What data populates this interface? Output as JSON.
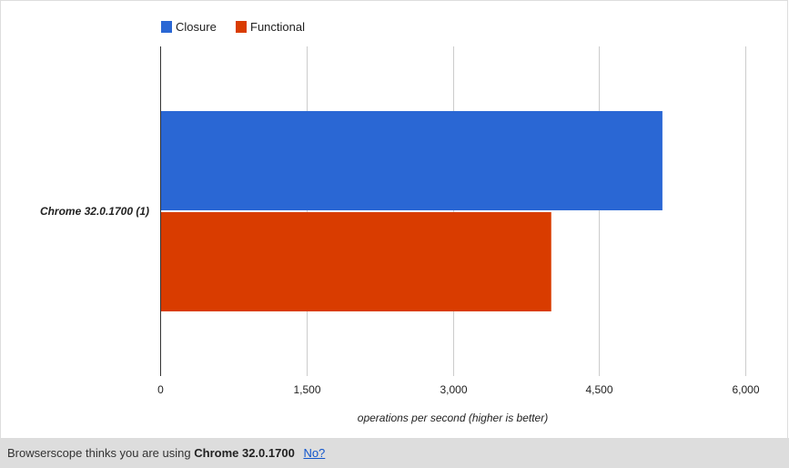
{
  "chart_data": {
    "type": "bar",
    "orientation": "horizontal",
    "categories": [
      "Chrome 32.0.1700 (1)"
    ],
    "series": [
      {
        "name": "Closure",
        "values": [
          5150
        ],
        "color": "#2a67d4"
      },
      {
        "name": "Functional",
        "values": [
          4010
        ],
        "color": "#d93c00"
      }
    ],
    "xlabel": "operations per second (higher is better)",
    "ylabel": "",
    "xlim": [
      0,
      6000
    ],
    "xticks": [
      0,
      1500,
      3000,
      4500,
      6000
    ],
    "xtick_labels": [
      "0",
      "1,500",
      "3,000",
      "4,500",
      "6,000"
    ],
    "grid": true,
    "legend_position": "top"
  },
  "footer": {
    "prefix": "Browserscope thinks you are using",
    "browser": "Chrome 32.0.1700",
    "link_label": "No?"
  }
}
